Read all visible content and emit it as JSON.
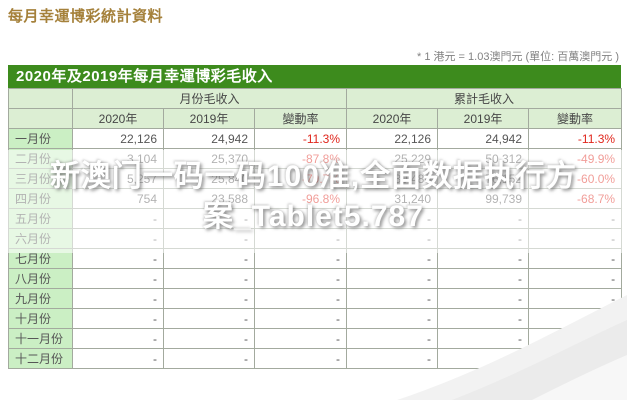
{
  "header": {
    "title": "每月幸運博彩統計資料"
  },
  "note": "* 1 港元 = 1.03澳門元 (單位: 百萬澳門元 )",
  "table": {
    "caption": "2020年及2019年每月幸運博彩毛收入",
    "group_headers": [
      "月份毛收入",
      "累計毛收入"
    ],
    "sub_headers": [
      "2020年",
      "2019年",
      "變動率",
      "2020年",
      "2019年",
      "變動率"
    ],
    "rows": [
      {
        "month": "一月份",
        "cells": [
          "22,126",
          "24,942",
          "-11.3%",
          "22,126",
          "24,942",
          "-11.3%"
        ]
      },
      {
        "month": "二月份",
        "cells": [
          "3,104",
          "25,370",
          "-87.8%",
          "25,229",
          "50,312",
          "-49.9%"
        ]
      },
      {
        "month": "三月份",
        "cells": [
          "5,257",
          "25,840",
          "-79.7%",
          "30,486",
          "76,152",
          "-60.0%"
        ]
      },
      {
        "month": "四月份",
        "cells": [
          "754",
          "23,588",
          "-96.8%",
          "31,240",
          "99,739",
          "-68.7%"
        ]
      },
      {
        "month": "五月份",
        "cells": [
          "-",
          "-",
          "-",
          "-",
          "-",
          "-"
        ]
      },
      {
        "month": "六月份",
        "cells": [
          "-",
          "-",
          "-",
          "-",
          "-",
          "-"
        ]
      },
      {
        "month": "七月份",
        "cells": [
          "-",
          "-",
          "-",
          "-",
          "-",
          "-"
        ]
      },
      {
        "month": "八月份",
        "cells": [
          "-",
          "-",
          "-",
          "-",
          "-",
          "-"
        ]
      },
      {
        "month": "九月份",
        "cells": [
          "-",
          "-",
          "-",
          "-",
          "-",
          "-"
        ]
      },
      {
        "month": "十月份",
        "cells": [
          "-",
          "-",
          "-",
          "-",
          "-",
          "-"
        ]
      },
      {
        "month": "十一月份",
        "cells": [
          "-",
          "-",
          "-",
          "-",
          "-",
          "-"
        ]
      },
      {
        "month": "十二月份",
        "cells": [
          "-",
          "-",
          "-",
          "-",
          "-",
          "-"
        ]
      }
    ]
  },
  "watermark": {
    "line1": "新澳门一码一码100准,全面数据执行方",
    "line2": "案_Tablet5.787"
  },
  "colors": {
    "title_gold": "#a5813b",
    "caption_green": "#3d8b1d",
    "header_bg": "#dceed3",
    "month_bg": "#cbefc4",
    "negative_red": "#e0261c"
  }
}
